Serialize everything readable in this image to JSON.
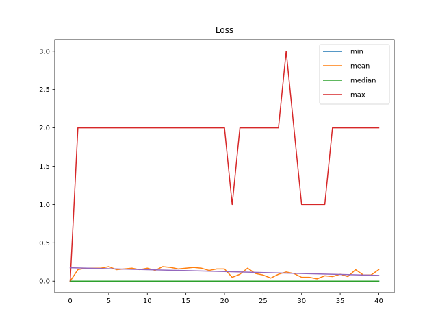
{
  "chart_data": {
    "type": "line",
    "title": "Loss",
    "xlabel": "",
    "ylabel": "",
    "xlim": [
      -2,
      42
    ],
    "ylim": [
      -0.15,
      3.15
    ],
    "xticks": [
      0,
      5,
      10,
      15,
      20,
      25,
      30,
      35,
      40
    ],
    "yticks": [
      0.0,
      0.5,
      1.0,
      1.5,
      2.0,
      2.5,
      3.0
    ],
    "ytick_labels": [
      "0.0",
      "0.5",
      "1.0",
      "1.5",
      "2.0",
      "2.5",
      "3.0"
    ],
    "grid": false,
    "legend_position": "top-right",
    "x": [
      0,
      1,
      2,
      3,
      4,
      5,
      6,
      7,
      8,
      9,
      10,
      11,
      12,
      13,
      14,
      15,
      16,
      17,
      18,
      19,
      20,
      21,
      22,
      23,
      24,
      25,
      26,
      27,
      28,
      29,
      30,
      31,
      32,
      33,
      34,
      35,
      36,
      37,
      38,
      39,
      40
    ],
    "series": [
      {
        "name": "min",
        "color": "#1f77b4",
        "values": [
          0,
          0,
          0,
          0,
          0,
          0,
          0,
          0,
          0,
          0,
          0,
          0,
          0,
          0,
          0,
          0,
          0,
          0,
          0,
          0,
          0,
          0,
          0,
          0,
          0,
          0,
          0,
          0,
          0,
          0,
          0,
          0,
          0,
          0,
          0,
          0,
          0,
          0,
          0,
          0,
          0
        ]
      },
      {
        "name": "mean",
        "color": "#ff7f0e",
        "values": [
          0.0,
          0.15,
          0.17,
          0.17,
          0.17,
          0.19,
          0.15,
          0.16,
          0.17,
          0.15,
          0.17,
          0.14,
          0.19,
          0.18,
          0.16,
          0.17,
          0.18,
          0.17,
          0.14,
          0.16,
          0.16,
          0.05,
          0.09,
          0.17,
          0.1,
          0.08,
          0.04,
          0.09,
          0.12,
          0.1,
          0.05,
          0.05,
          0.03,
          0.07,
          0.06,
          0.09,
          0.06,
          0.15,
          0.08,
          0.08,
          0.15
        ]
      },
      {
        "name": "median",
        "color": "#2ca02c",
        "values": [
          0,
          0,
          0,
          0,
          0,
          0,
          0,
          0,
          0,
          0,
          0,
          0,
          0,
          0,
          0,
          0,
          0,
          0,
          0,
          0,
          0,
          0,
          0,
          0,
          0,
          0,
          0,
          0,
          0,
          0,
          0,
          0,
          0,
          0,
          0,
          0,
          0,
          0,
          0,
          0,
          0
        ]
      },
      {
        "name": "max",
        "color": "#d62728",
        "values": [
          0,
          2,
          2,
          2,
          2,
          2,
          2,
          2,
          2,
          2,
          2,
          2,
          2,
          2,
          2,
          2,
          2,
          2,
          2,
          2,
          2,
          1,
          2,
          2,
          2,
          2,
          2,
          2,
          3,
          2,
          1,
          1,
          1,
          1,
          2,
          2,
          2,
          2,
          2,
          2,
          2
        ]
      }
    ],
    "extra_series": [
      {
        "color": "#9467bd",
        "x": [
          0,
          40
        ],
        "values": [
          0.175,
          0.075
        ]
      }
    ]
  }
}
